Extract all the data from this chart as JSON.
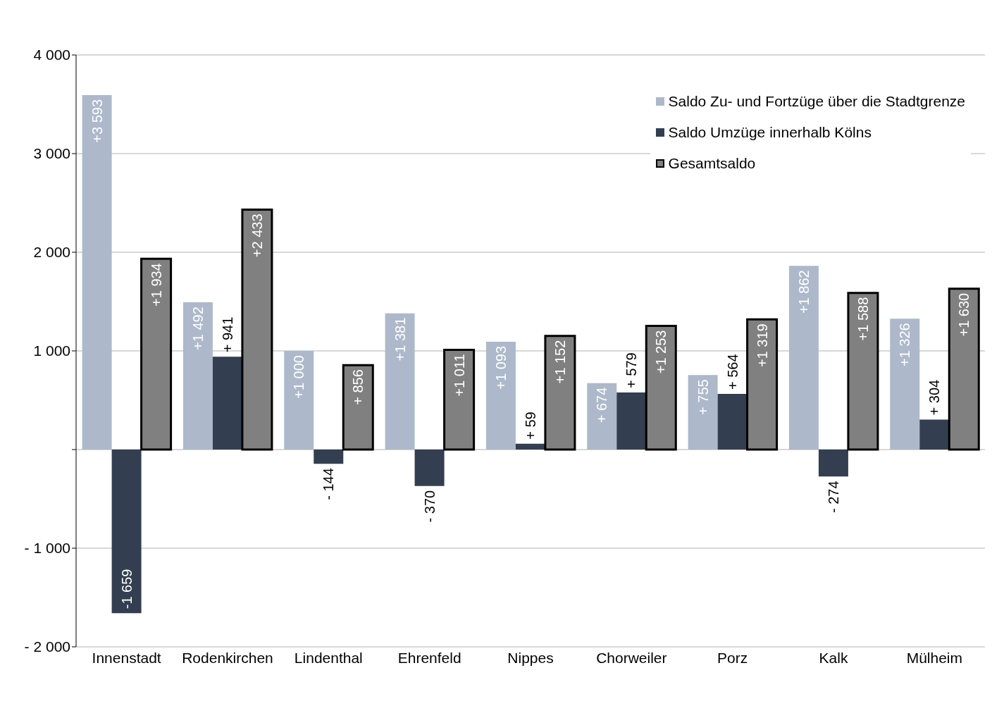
{
  "chart_data": {
    "type": "bar",
    "categories": [
      "Innenstadt",
      "Rodenkirchen",
      "Lindenthal",
      "Ehrenfeld",
      "Nippes",
      "Chorweiler",
      "Porz",
      "Kalk",
      "Mülheim"
    ],
    "series": [
      {
        "name": "Saldo Zu- und Fortzüge über die Stadtgrenze",
        "color": "#adb9ca",
        "values": [
          3593,
          1492,
          1000,
          1381,
          1093,
          674,
          755,
          1862,
          1326
        ],
        "value_labels": [
          "+3 593",
          "+1 492",
          "+1 000",
          "+1 381",
          "+1 093",
          "+ 674",
          "+ 755",
          "+1 862",
          "+1 326"
        ]
      },
      {
        "name": "Saldo Umzüge innerhalb Kölns",
        "color": "#333f50",
        "values": [
          -1659,
          941,
          -144,
          -370,
          59,
          579,
          564,
          -274,
          304
        ],
        "value_labels": [
          "-1 659",
          "+ 941",
          "- 144",
          "- 370",
          "+ 59",
          "+ 579",
          "+ 564",
          "- 274",
          "+ 304"
        ]
      },
      {
        "name": "Gesamtsaldo",
        "color": "#808080",
        "values": [
          1934,
          2433,
          856,
          1011,
          1152,
          1253,
          1319,
          1588,
          1630
        ],
        "value_labels": [
          "+1 934",
          "+2 433",
          "+ 856",
          "+1 011",
          "+1 152",
          "+1 253",
          "+1 319",
          "+1 588",
          "+1 630"
        ]
      }
    ],
    "ylim": [
      -2000,
      4000
    ],
    "yticks": [
      {
        "value": -2000,
        "label": "- 2 000"
      },
      {
        "value": -1000,
        "label": "- 1 000"
      },
      {
        "value": 0,
        "label": null
      },
      {
        "value": 1000,
        "label": "1 000"
      },
      {
        "value": 2000,
        "label": "2 000"
      },
      {
        "value": 3000,
        "label": "3 000"
      },
      {
        "value": 4000,
        "label": "4 000"
      }
    ],
    "grid": "y",
    "legend": "top right"
  }
}
